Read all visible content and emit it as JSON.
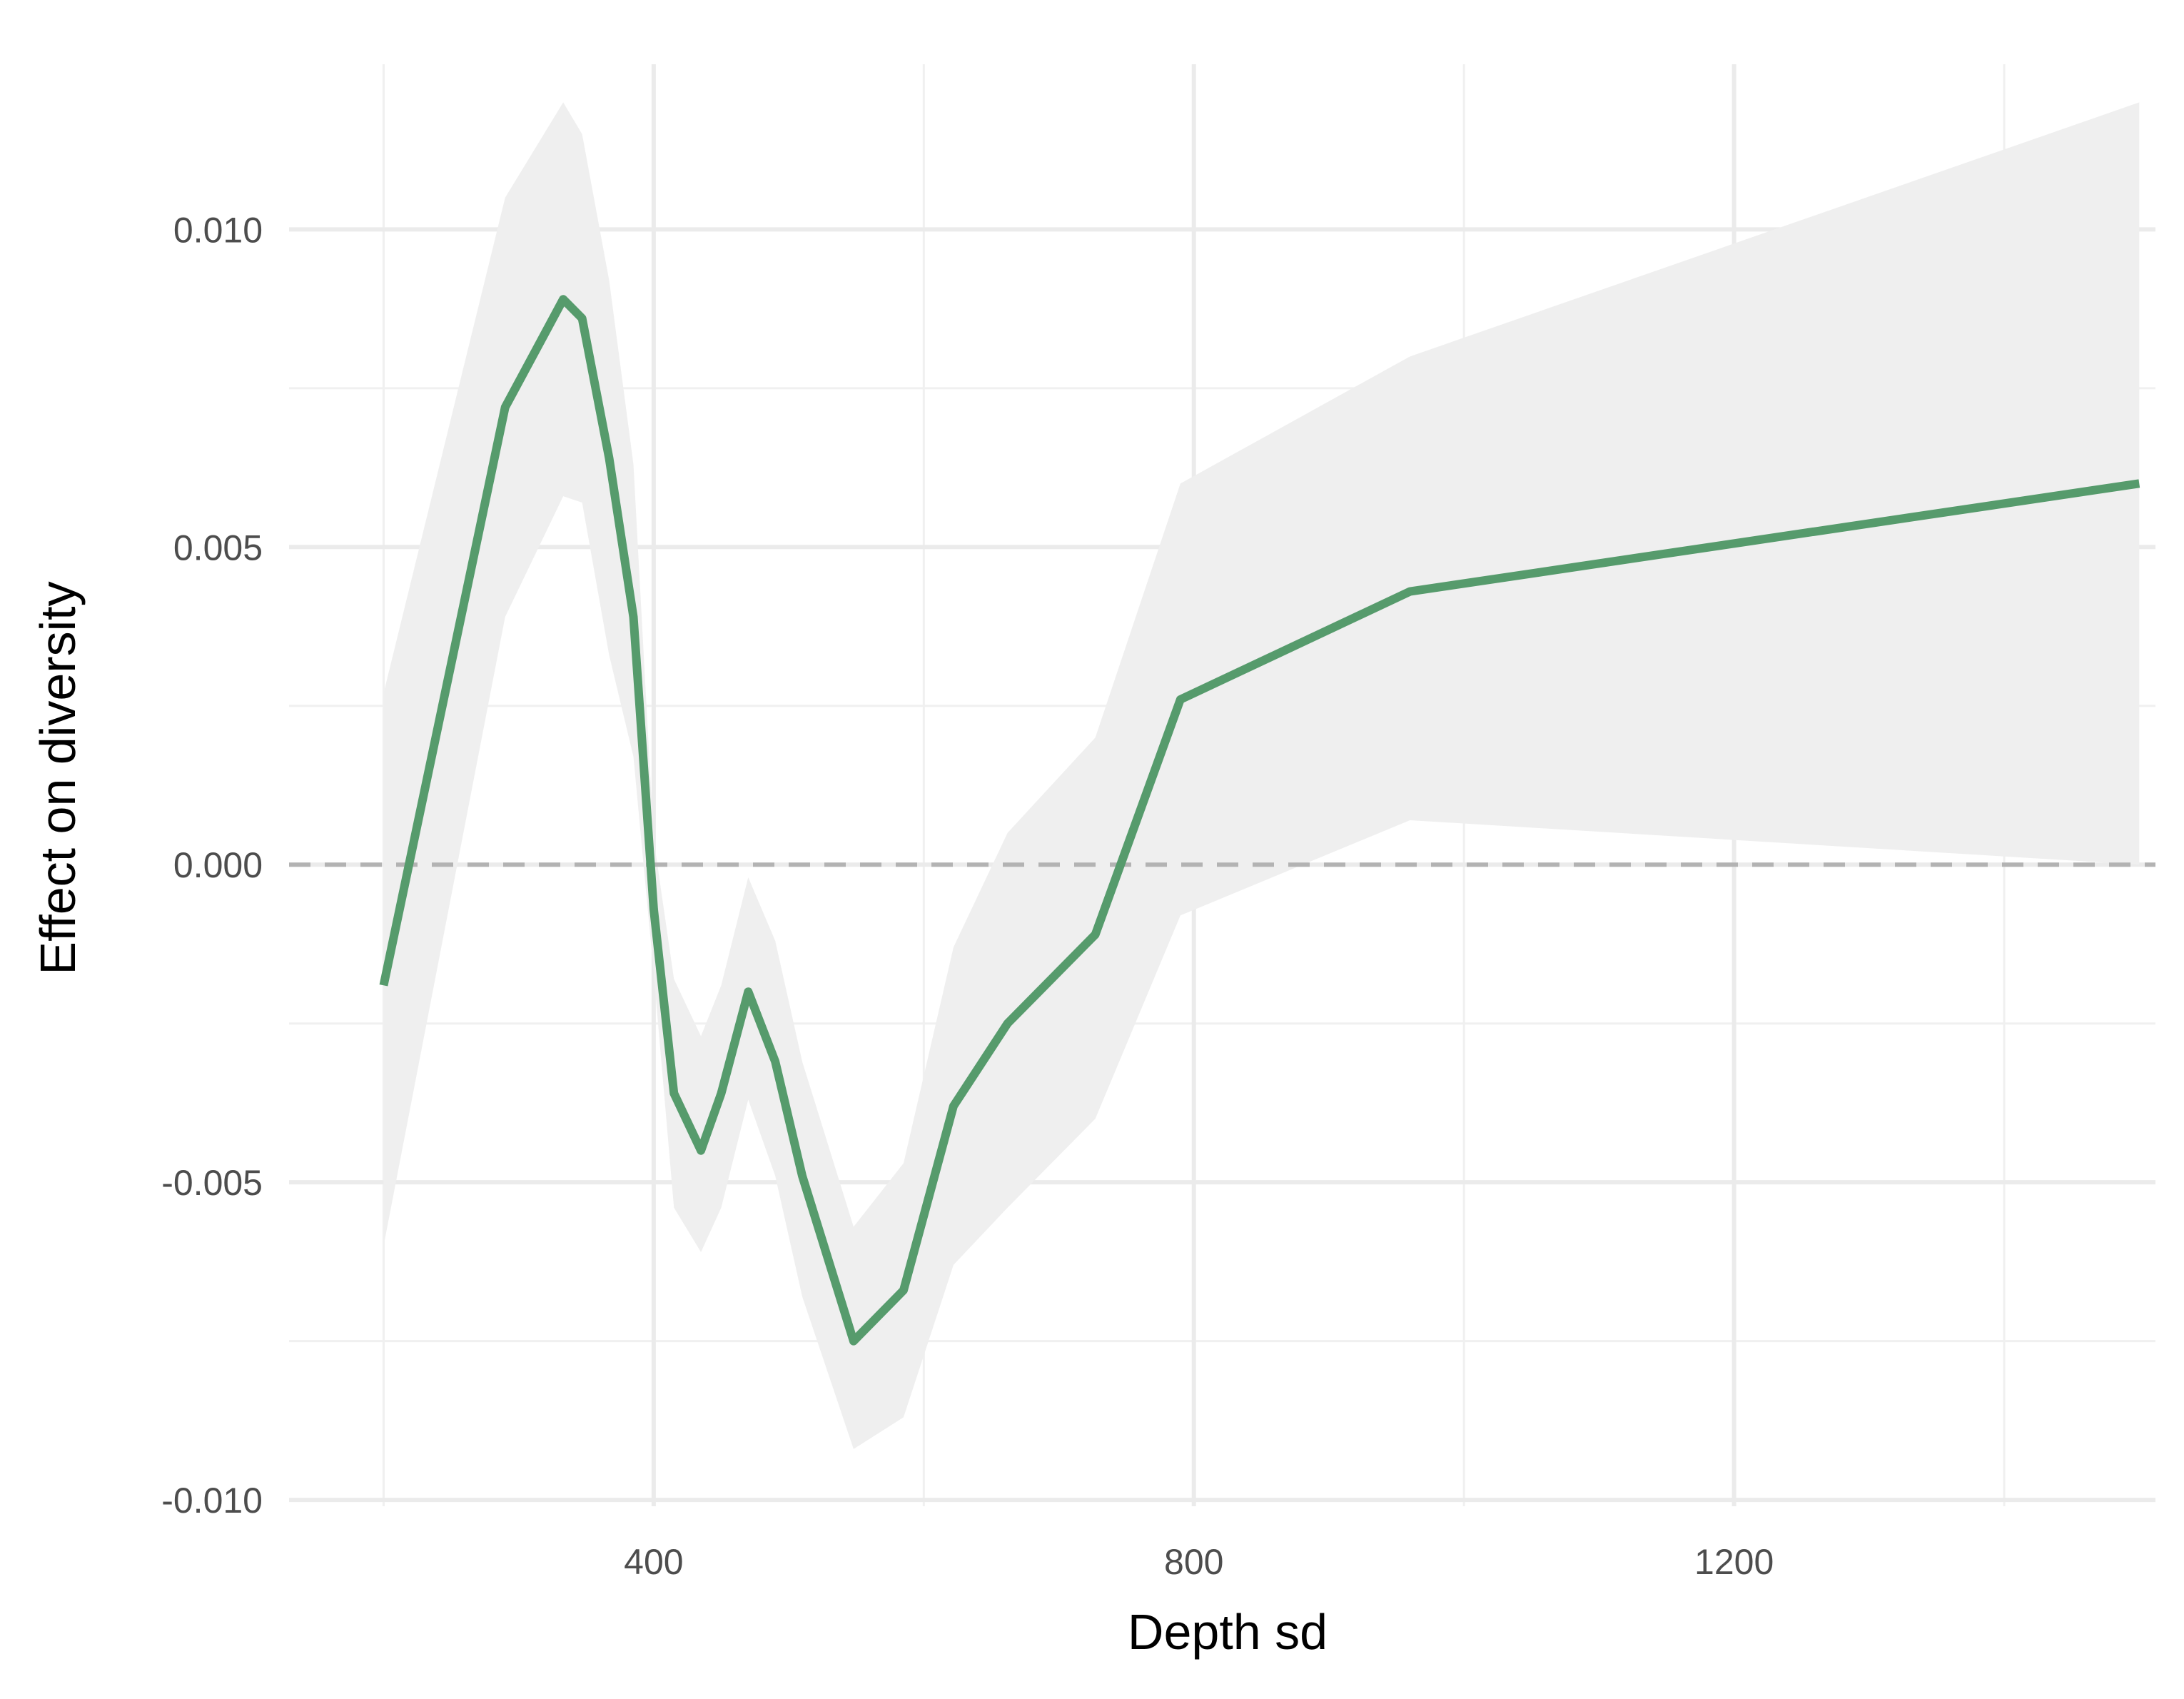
{
  "chart_data": {
    "type": "line",
    "xlabel": "Depth sd",
    "ylabel": "Effect on diversity",
    "xlim": [
      130,
      1512
    ],
    "ylim": [
      -0.0101,
      0.0126
    ],
    "x_ticks": [
      400,
      800,
      1200
    ],
    "x_minor_ticks": [
      200,
      600,
      1000,
      1400
    ],
    "x_tick_labels": [
      "400",
      "800",
      "1200"
    ],
    "y_ticks": [
      -0.01,
      -0.005,
      0.0,
      0.005,
      0.01
    ],
    "y_minor_ticks": [
      -0.0075,
      -0.0025,
      0.0025,
      0.0075
    ],
    "y_tick_labels": [
      "-0.010",
      "-0.005",
      "0.000",
      "0.005",
      "0.010"
    ],
    "grid": true,
    "reference_line": {
      "y": 0,
      "style": "dashed"
    },
    "series": [
      {
        "color": "#569b6c",
        "band_color": "#efefef",
        "x": [
          200,
          290,
          333,
          347,
          367,
          385,
          400,
          415,
          435,
          450,
          470,
          490,
          510,
          548,
          585,
          622,
          662,
          727,
          790,
          960,
          1500
        ],
        "y": [
          -0.0019,
          0.0072,
          0.0089,
          0.0086,
          0.0064,
          0.0039,
          -0.0007,
          -0.0036,
          -0.0045,
          -0.0036,
          -0.002,
          -0.0031,
          -0.0049,
          -0.0075,
          -0.0067,
          -0.0038,
          -0.0025,
          -0.0011,
          0.0026,
          0.0043,
          0.006
        ],
        "lower": [
          -0.006,
          0.0039,
          0.0058,
          0.0057,
          0.0033,
          0.0017,
          -0.0017,
          -0.0054,
          -0.0061,
          -0.0054,
          -0.0037,
          -0.0049,
          -0.0068,
          -0.0092,
          -0.0087,
          -0.0063,
          -0.0054,
          -0.004,
          -0.0008,
          0.0007,
          0.0
        ],
        "upper": [
          0.0027,
          0.0105,
          0.012,
          0.0115,
          0.0092,
          0.0063,
          0.0004,
          -0.0018,
          -0.0027,
          -0.0019,
          -0.0002,
          -0.0012,
          -0.0031,
          -0.0057,
          -0.0047,
          -0.0013,
          0.0005,
          0.002,
          0.006,
          0.008,
          0.012
        ]
      }
    ]
  }
}
